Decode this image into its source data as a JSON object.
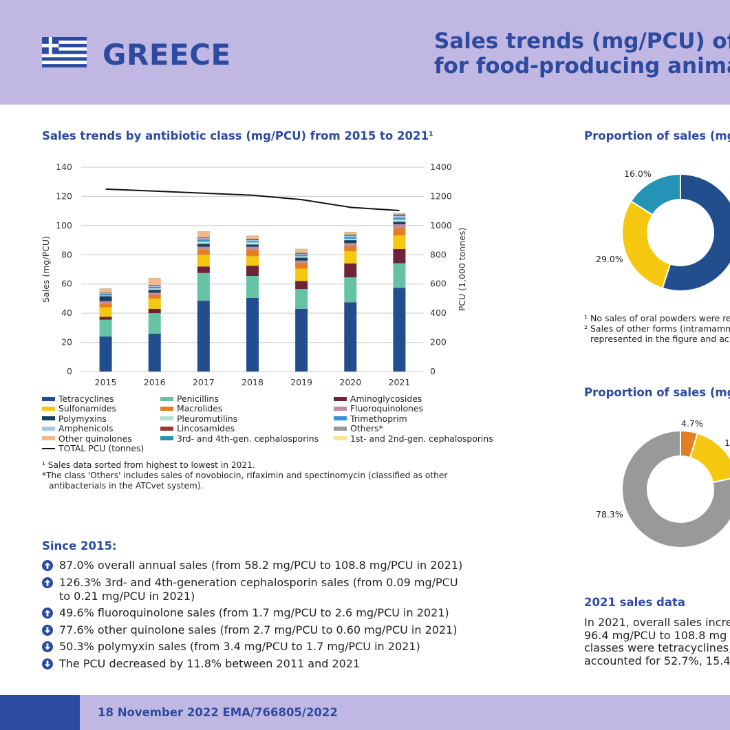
{
  "header": {
    "country": "GREECE",
    "title_line1": "Sales trends (mg/PCU) of",
    "title_line2": "for food-producing anima"
  },
  "colors": {
    "brand_blue": "#2b4aa0",
    "header_bg": "#c0b8e2",
    "flag_blue": "#2b4aa0"
  },
  "bar_section": {
    "title": "Sales trends by antibiotic class (mg/PCU) from 2015 to 2021¹"
  },
  "chart_data": [
    {
      "type": "bar",
      "stacked": true,
      "title": "Sales trends by antibiotic class (mg/PCU) from 2015 to 2021¹",
      "xlabel": "",
      "ylabel": "Sales (mg/PCU)",
      "y2label": "PCU (1,000 tonnes)",
      "ylim": [
        0,
        140
      ],
      "y2lim": [
        0,
        1400
      ],
      "yticks": [
        "0",
        "20",
        "40",
        "60",
        "80",
        "100",
        "120",
        "140"
      ],
      "y2ticks": [
        "0",
        "200",
        "400",
        "600",
        "800",
        "1000",
        "1200",
        "1400"
      ],
      "categories": [
        "2015",
        "2016",
        "2017",
        "2018",
        "2019",
        "2020",
        "2021"
      ],
      "grid": true,
      "series": [
        {
          "name": "Tetracyclines",
          "color": "#234e8e",
          "values": [
            24,
            26,
            48.5,
            50.5,
            43,
            47.5,
            57.4
          ]
        },
        {
          "name": "Penicillins",
          "color": "#66c2a5",
          "values": [
            11.5,
            14,
            19,
            15,
            13.5,
            17,
            16.8
          ]
        },
        {
          "name": "Aminoglycosides",
          "color": "#6e2438",
          "values": [
            2,
            3,
            4.5,
            7,
            5.5,
            9.5,
            9.8
          ]
        },
        {
          "name": "Sulfonamides",
          "color": "#f5c80f",
          "values": [
            6.5,
            7,
            8,
            6.5,
            8.5,
            8.5,
            9.2
          ]
        },
        {
          "name": "Macrolides",
          "color": "#e37f23",
          "values": [
            2.5,
            2.5,
            3.5,
            4.5,
            4,
            3.5,
            5.1
          ]
        },
        {
          "name": "Fluoroquinolones",
          "color": "#c08aa0",
          "values": [
            1.7,
            1.5,
            2,
            2,
            1.5,
            2,
            2.6
          ]
        },
        {
          "name": "Polymyxins",
          "color": "#17405f",
          "values": [
            3.4,
            2,
            2,
            1.5,
            2,
            2,
            1.7
          ]
        },
        {
          "name": "Pleuromutilins",
          "color": "#b2e2d0",
          "values": [
            0.5,
            1,
            1.5,
            1.5,
            1,
            1,
            1.5
          ]
        },
        {
          "name": "Trimethoprim",
          "color": "#3b93d1",
          "values": [
            1.2,
            1,
            1.5,
            1,
            1,
            1.3,
            1.4
          ]
        },
        {
          "name": "Amphenicols",
          "color": "#a6c9ea",
          "values": [
            0.3,
            0.5,
            0.8,
            0.5,
            0.5,
            0.7,
            1.1
          ]
        },
        {
          "name": "Lincosamides",
          "color": "#a23333",
          "values": [
            0.3,
            0.5,
            0.5,
            0.5,
            0.5,
            0.5,
            0.6
          ]
        },
        {
          "name": "Others*",
          "color": "#999999",
          "values": [
            0.3,
            0.5,
            0.5,
            0.5,
            0.5,
            0.5,
            0.5
          ]
        },
        {
          "name": "Other quinolones",
          "color": "#f2b88a",
          "values": [
            2.7,
            4.5,
            3.7,
            2,
            2.5,
            1.5,
            0.6
          ]
        },
        {
          "name": "3rd- and 4th-gen. cephalosporins",
          "color": "#2493b5",
          "values": [
            0.09,
            0.1,
            0.1,
            0.1,
            0.1,
            0.15,
            0.21
          ]
        },
        {
          "name": "1st- and 2nd-gen. cephalosporins",
          "color": "#fbe38c",
          "values": [
            0.1,
            0.1,
            0.1,
            0.1,
            0.1,
            0.1,
            0.1
          ]
        }
      ],
      "line_series": {
        "name": "TOTAL PCU (tonnes)",
        "color": "#111111",
        "axis": "y2",
        "values": [
          1250,
          1236,
          1222,
          1208,
          1178,
          1125,
          1103
        ]
      }
    },
    {
      "type": "pie",
      "subtype": "donut",
      "title": "Proportion of sales (mg",
      "slices": [
        {
          "label": "",
          "value": 55.0,
          "color": "#234e8e"
        },
        {
          "label": "29.0%",
          "value": 29.0,
          "color": "#f5c80f"
        },
        {
          "label": "16.0%",
          "value": 16.0,
          "color": "#2493b5"
        }
      ]
    },
    {
      "type": "pie",
      "subtype": "donut",
      "title": "Proportion of sales (mg",
      "slices": [
        {
          "label": "4.7%",
          "value": 4.7,
          "color": "#e37f23"
        },
        {
          "label": "",
          "value": 17.0,
          "color": "#f5c80f"
        },
        {
          "label": "78.3%",
          "value": 78.3,
          "color": "#999999"
        }
      ]
    }
  ],
  "legend": {
    "items": [
      "Tetracyclines",
      "Penicillins",
      "Aminoglycosides",
      "Sulfonamides",
      "Macrolides",
      "Fluoroquinolones",
      "Polymyxins",
      "Pleuromutilins",
      "Trimethoprim",
      "Amphenicols",
      "Lincosamides",
      "Others*",
      "Other quinolones",
      "3rd- and 4th-gen. cephalosporins",
      "1st- and 2nd-gen. cephalosporins"
    ],
    "line_label": "TOTAL PCU (tonnes)"
  },
  "footnotes": {
    "f1": "¹ Sales data sorted from highest to lowest in 2021.",
    "f2a": "*The class 'Others' includes sales of novobiocin, rifaximin and spectinomycin (classified as other",
    "f2b": "antibacterials in the ATCvet system)."
  },
  "since": {
    "title": "Since 2015:",
    "items": [
      {
        "dir": "up",
        "line1": "87.0% overall annual sales (from 58.2 mg/PCU to 108.8 mg/PCU in 2021)",
        "line2": ""
      },
      {
        "dir": "up",
        "line1": "126.3% 3rd- and 4th-generation cephalosporin sales (from 0.09 mg/PCU",
        "line2": "to 0.21 mg/PCU in 2021)"
      },
      {
        "dir": "up",
        "line1": "49.6% fluoroquinolone sales (from 1.7 mg/PCU to 2.6 mg/PCU in 2021)",
        "line2": ""
      },
      {
        "dir": "down",
        "line1": "77.6% other quinolone sales (from 2.7 mg/PCU to 0.60 mg/PCU in 2021)",
        "line2": ""
      },
      {
        "dir": "down",
        "line1": "50.3% polymyxin sales (from 3.4 mg/PCU to 1.7 mg/PCU in 2021)",
        "line2": ""
      },
      {
        "dir": "down",
        "line1": "The PCU decreased by 11.8% between 2011 and 2021",
        "line2": ""
      }
    ]
  },
  "right": {
    "prop_title_1": "Proportion of sales (mg",
    "notes_1a": "¹ No sales of oral powders were re",
    "notes_1b": "² Sales of other forms (intramamm",
    "notes_1c": "represented in the figure and ac",
    "prop_title_2": "Proportion of sales (mg",
    "donut2_cut_label": "1",
    "sales_title": "2021 sales data",
    "para_lines": [
      "In 2021, overall sales incre",
      "96.4 mg/PCU to 108.8 mg",
      "classes were tetracyclines,",
      "accounted for 52.7%, 15.4"
    ]
  },
  "footer": {
    "text": "18 November 2022  EMA/766805/2022"
  }
}
